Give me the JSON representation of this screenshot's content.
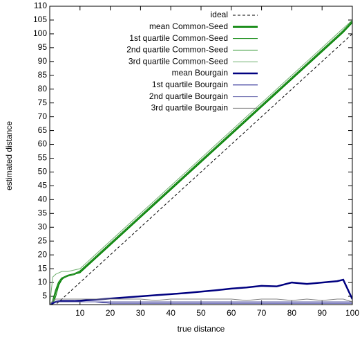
{
  "chart_data": {
    "type": "line",
    "xlabel": "true distance",
    "ylabel": "estimated distance",
    "xlim": [
      0,
      100
    ],
    "ylim": [
      2,
      110
    ],
    "xticks": [
      10,
      20,
      30,
      40,
      50,
      60,
      70,
      80,
      90,
      100
    ],
    "yticks": [
      5,
      10,
      15,
      20,
      25,
      30,
      35,
      40,
      45,
      50,
      55,
      60,
      65,
      70,
      75,
      80,
      85,
      90,
      95,
      100,
      105,
      110
    ],
    "grid": false,
    "legend": "top-left",
    "x": [
      0,
      1,
      2,
      3,
      4,
      5,
      6,
      8,
      10,
      15,
      20,
      25,
      30,
      35,
      40,
      45,
      50,
      55,
      60,
      65,
      70,
      75,
      80,
      85,
      90,
      95,
      97,
      100
    ],
    "series": [
      {
        "name": "ideal",
        "color": "#000000",
        "dashed": true,
        "line_width": 1,
        "values": [
          0,
          1,
          2,
          3,
          4,
          5,
          6,
          8,
          10,
          15,
          20,
          25,
          30,
          35,
          40,
          45,
          50,
          55,
          60,
          65,
          70,
          75,
          80,
          85,
          90,
          95,
          97,
          100
        ]
      },
      {
        "name": "mean Common-Seed",
        "color": "#008000",
        "dashed": false,
        "line_width": 2.5,
        "values": [
          2,
          3,
          7,
          10,
          11.5,
          12,
          12.5,
          13,
          14,
          19,
          24,
          29,
          34,
          39,
          44,
          49,
          54,
          59,
          64,
          69,
          74,
          79,
          84,
          89,
          94,
          99,
          101,
          104.5
        ]
      },
      {
        "name": "1st quartile Common-Seed",
        "color": "#008000",
        "dashed": false,
        "line_width": 1,
        "values": [
          2,
          2,
          5,
          9,
          11,
          12,
          12.5,
          13,
          13.5,
          18.5,
          23.5,
          28.5,
          33.5,
          38.5,
          43.5,
          48.5,
          53.5,
          58.5,
          63.5,
          68.5,
          73.5,
          78.5,
          83.5,
          88.5,
          93.5,
          98.5,
          100.5,
          104
        ]
      },
      {
        "name": "2nd quartile Common-Seed",
        "color": "#3a9a3a",
        "dashed": false,
        "line_width": 1,
        "values": [
          2,
          3,
          7,
          10,
          11.5,
          12,
          12.5,
          13,
          14,
          19,
          24,
          29,
          34,
          39,
          44,
          49,
          54,
          59,
          64,
          69,
          74,
          79,
          84,
          89,
          94,
          99,
          101,
          104.5
        ]
      },
      {
        "name": "3rd quartile Common-Seed",
        "color": "#70b070",
        "dashed": false,
        "line_width": 1,
        "values": [
          2,
          12,
          13,
          13.5,
          14,
          14,
          14,
          14.5,
          15,
          20,
          25,
          30,
          35,
          40,
          45,
          50,
          55,
          60,
          65,
          70,
          75,
          80,
          85,
          90,
          95,
          100,
          102,
          105
        ]
      },
      {
        "name": "mean Bourgain",
        "color": "#000080",
        "dashed": false,
        "line_width": 2.5,
        "values": [
          2,
          2.5,
          3,
          3.2,
          3.3,
          3.3,
          3.3,
          3.3,
          3.4,
          3.8,
          4.2,
          4.6,
          5,
          5.4,
          5.8,
          6.2,
          6.7,
          7.2,
          7.8,
          8.2,
          8.8,
          8.6,
          10,
          9.5,
          10,
          10.5,
          11,
          4
        ]
      },
      {
        "name": "1st quartile Bourgain",
        "color": "#000080",
        "dashed": false,
        "line_width": 1,
        "values": [
          2,
          2.5,
          3,
          3,
          3,
          3,
          3,
          3,
          3,
          3,
          2.5,
          2.5,
          2.5,
          2.5,
          2.5,
          2.5,
          2.5,
          2.5,
          2.5,
          2.5,
          2.5,
          2.5,
          2.5,
          2.5,
          2.5,
          2.5,
          2.5,
          2.5
        ]
      },
      {
        "name": "2nd quartile Bourgain",
        "color": "#6060a8",
        "dashed": false,
        "line_width": 1,
        "values": [
          2,
          3,
          3,
          3,
          3,
          3,
          3,
          3,
          3,
          3,
          3,
          3,
          3,
          3,
          3,
          3,
          3,
          3,
          3,
          3,
          3,
          3,
          3,
          3,
          3,
          3,
          3,
          3
        ]
      },
      {
        "name": "3rd quartile Bourgain",
        "color": "#808080",
        "dashed": false,
        "line_width": 1,
        "values": [
          2,
          3.5,
          4,
          4,
          4,
          4,
          4,
          4,
          4,
          4,
          4,
          4,
          4,
          3.5,
          4,
          4,
          4,
          4,
          4,
          3.5,
          4,
          4,
          3.5,
          4,
          3.5,
          4,
          4,
          3
        ]
      }
    ]
  }
}
